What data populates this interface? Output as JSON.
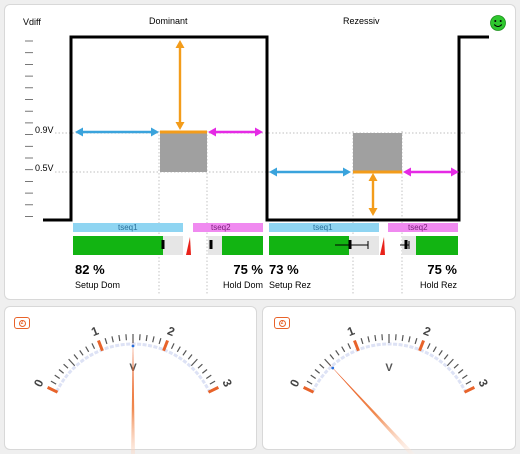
{
  "diagram": {
    "y_axis_label": "Vdiff",
    "levels": [
      {
        "label": "0.9V",
        "value": 0.9
      },
      {
        "label": "0.5V",
        "value": 0.5
      }
    ],
    "phases": [
      {
        "title": "Dominant",
        "seg1_label": "tseq1",
        "seg2_label": "tseq2",
        "setup": {
          "value": "82 %",
          "caption": "Setup Dom",
          "fill": 0.82
        },
        "hold": {
          "value": "75 %",
          "caption": "Hold Dom",
          "fill": 0.75
        }
      },
      {
        "title": "Rezessiv",
        "seg1_label": "tseq1",
        "seg2_label": "tseq2",
        "setup": {
          "value": "73 %",
          "caption": "Setup Rez",
          "fill": 0.73
        },
        "hold": {
          "value": "75 %",
          "caption": "Hold Rez",
          "fill": 0.75
        }
      }
    ],
    "status_icon": "smiley-face-icon",
    "colors": {
      "signal": "#000000",
      "window": "#a0a0a0",
      "sample_arrow": "#f39c1a",
      "setup_arrow": "#3aa3dc",
      "hold_arrow": "#e52ae5",
      "bar_fill": "#12b412",
      "seg1": "#8fd5f2",
      "seg2": "#f08af0",
      "marker": "#e8221a",
      "status": "#2ec72e"
    }
  },
  "gauges": [
    {
      "id": "left",
      "unit": "V",
      "tick_labels": [
        "0",
        "1",
        "2",
        "3"
      ],
      "min": 0,
      "max": 3,
      "value": 1.5,
      "icon": "gauge-icon"
    },
    {
      "id": "right",
      "unit": "V",
      "tick_labels": [
        "0",
        "1",
        "2",
        "3"
      ],
      "min": 0,
      "max": 3,
      "value": 0.5,
      "icon": "gauge-icon"
    }
  ]
}
